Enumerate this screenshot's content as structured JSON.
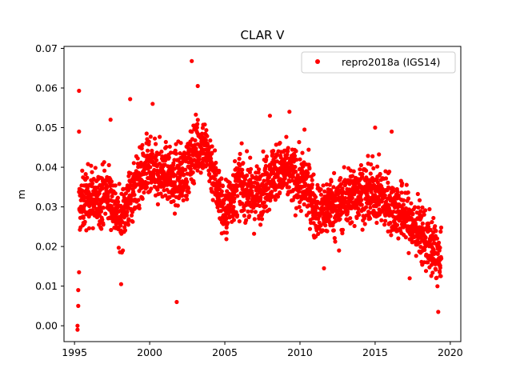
{
  "chart_data": {
    "type": "scatter",
    "title": "CLAR V",
    "xlabel": "",
    "ylabel": "m",
    "xlim": [
      1994.3,
      2020.7
    ],
    "ylim": [
      -0.004,
      0.0705
    ],
    "xticks": [
      1995,
      2000,
      2005,
      2010,
      2015,
      2020
    ],
    "yticks": [
      "0.00",
      "0.01",
      "0.02",
      "0.03",
      "0.04",
      "0.05",
      "0.06",
      "0.07"
    ],
    "grid": false,
    "legend_position": "top-right",
    "series": [
      {
        "name": "repro2018a (IGS14)",
        "color": "#ff0000",
        "marker": "circle",
        "trend": [
          [
            1995.3,
            0.03
          ],
          [
            1996.0,
            0.033
          ],
          [
            1996.5,
            0.031
          ],
          [
            1997.0,
            0.034
          ],
          [
            1997.5,
            0.032
          ],
          [
            1998.0,
            0.026
          ],
          [
            1998.5,
            0.031
          ],
          [
            1999.0,
            0.035
          ],
          [
            1999.5,
            0.038
          ],
          [
            2000.0,
            0.039
          ],
          [
            2000.5,
            0.038
          ],
          [
            2001.0,
            0.04
          ],
          [
            2001.5,
            0.036
          ],
          [
            2002.0,
            0.038
          ],
          [
            2002.5,
            0.039
          ],
          [
            2003.0,
            0.045
          ],
          [
            2003.5,
            0.046
          ],
          [
            2004.0,
            0.042
          ],
          [
            2004.5,
            0.035
          ],
          [
            2005.0,
            0.028
          ],
          [
            2005.5,
            0.033
          ],
          [
            2006.0,
            0.036
          ],
          [
            2006.5,
            0.034
          ],
          [
            2007.0,
            0.032
          ],
          [
            2007.5,
            0.035
          ],
          [
            2008.0,
            0.038
          ],
          [
            2008.5,
            0.039
          ],
          [
            2009.0,
            0.039
          ],
          [
            2009.5,
            0.038
          ],
          [
            2010.0,
            0.036
          ],
          [
            2010.5,
            0.035
          ],
          [
            2011.0,
            0.03
          ],
          [
            2011.5,
            0.028
          ],
          [
            2012.0,
            0.031
          ],
          [
            2012.5,
            0.03
          ],
          [
            2013.0,
            0.032
          ],
          [
            2013.5,
            0.033
          ],
          [
            2014.0,
            0.034
          ],
          [
            2014.5,
            0.033
          ],
          [
            2015.0,
            0.034
          ],
          [
            2015.5,
            0.032
          ],
          [
            2016.0,
            0.031
          ],
          [
            2016.5,
            0.029
          ],
          [
            2017.0,
            0.028
          ],
          [
            2017.5,
            0.025
          ],
          [
            2018.0,
            0.024
          ],
          [
            2018.5,
            0.021
          ],
          [
            2019.0,
            0.019
          ],
          [
            2019.4,
            0.015
          ]
        ],
        "spread": 0.0065,
        "outliers": [
          [
            1995.3,
            0.0593
          ],
          [
            1995.3,
            0.049
          ],
          [
            1995.2,
            -0.001
          ],
          [
            1995.2,
            0.0
          ],
          [
            1995.25,
            0.005
          ],
          [
            1995.25,
            0.009
          ],
          [
            1995.3,
            0.0135
          ],
          [
            1998.7,
            0.0572
          ],
          [
            1997.4,
            0.052
          ],
          [
            2001.8,
            0.006
          ],
          [
            2002.8,
            0.0668
          ],
          [
            2003.2,
            0.0605
          ],
          [
            1998.1,
            0.0105
          ],
          [
            1999.8,
            0.0485
          ],
          [
            2000.2,
            0.056
          ],
          [
            2009.3,
            0.054
          ],
          [
            2015.0,
            0.05
          ],
          [
            2016.1,
            0.049
          ],
          [
            2019.2,
            0.0035
          ],
          [
            2011.6,
            0.0145
          ],
          [
            2012.6,
            0.019
          ],
          [
            2017.3,
            0.012
          ],
          [
            2008.0,
            0.053
          ],
          [
            2010.3,
            0.0495
          ]
        ]
      }
    ]
  }
}
